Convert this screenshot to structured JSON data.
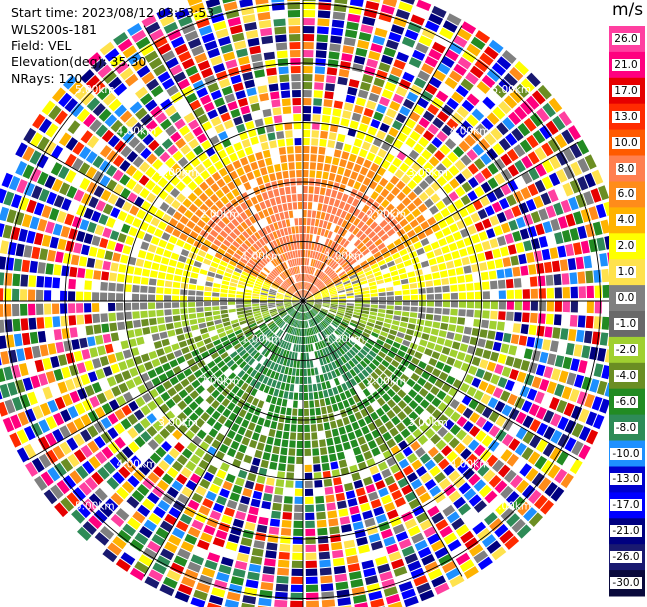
{
  "header": {
    "start_time": "Start time: 2023/08/12 03:53:53",
    "site": "WLS200s-181",
    "field": "Field: VEL",
    "elevation": "Elevation(deg): 35.30",
    "nrays": "NRays: 120"
  },
  "chart_data": {
    "type": "ppi",
    "title": "",
    "field": "VEL",
    "units": "m/s",
    "nrays": 120,
    "elevation_deg": 35.3,
    "range_rings_km": [
      1.0,
      2.0,
      3.0,
      4.0,
      5.0
    ],
    "range_ring_labels": [
      "1.00km",
      "2.00km",
      "3.00km",
      "4.00km",
      "5.00km"
    ],
    "azimuth_lines_deg": [
      0,
      30,
      60,
      90,
      120,
      150,
      180,
      210,
      240,
      270,
      300,
      330
    ],
    "colorbar": {
      "ticks": [
        "26.0",
        "21.0",
        "17.0",
        "13.0",
        "10.0",
        "8.0",
        "6.0",
        "4.0",
        "2.0",
        "1.0",
        "0.0",
        "-1.0",
        "-2.0",
        "-4.0",
        "-6.0",
        "-8.0",
        "-10.0",
        "-13.0",
        "-17.0",
        "-21.0",
        "-26.0",
        "-30.0"
      ],
      "colors": [
        "#ff3fa0",
        "#ff007f",
        "#e60000",
        "#ff2b00",
        "#ff5a00",
        "#ff7f50",
        "#ff8c1a",
        "#ffb300",
        "#ffff00",
        "#ffe24d",
        "#808080",
        "#696969",
        "#a0d030",
        "#6b8e23",
        "#228b22",
        "#2e8b57",
        "#1e90ff",
        "#0000cd",
        "#0000ff",
        "#000080",
        "#191970",
        "#0a0a3c"
      ]
    },
    "velocity_pattern": {
      "north_inner": "2.0 to 8.0 m/s (yellow/orange)",
      "south_inner": "-1.0 to -8.0 m/s (green)",
      "outer_ranges": "noisy, all values"
    }
  },
  "colors": {
    "ring": "#000000",
    "background": "#ffffff"
  }
}
